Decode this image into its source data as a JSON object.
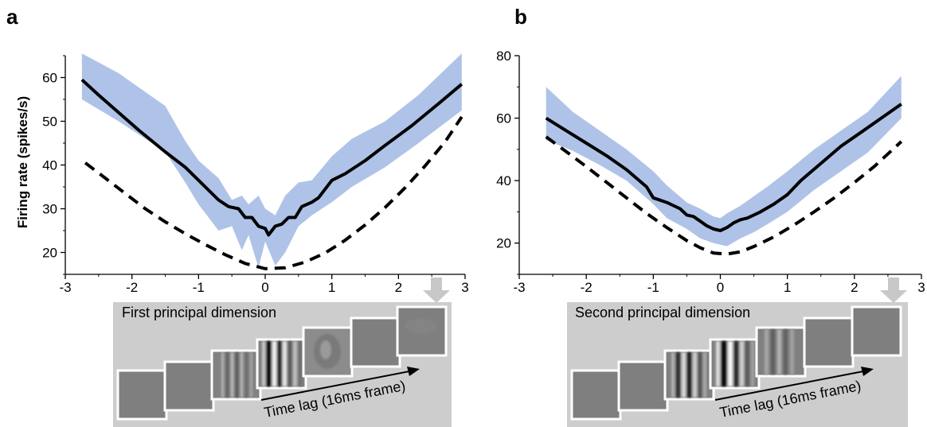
{
  "panels": [
    {
      "letter": "a",
      "inset_title": "First principal dimension",
      "time_lag_label": "Time lag (16ms frame)"
    },
    {
      "letter": "b",
      "inset_title": "Second principal dimension",
      "time_lag_label": "Time lag (16ms frame)"
    }
  ],
  "colors": {
    "band": "#afc3e8",
    "solid": "#000000",
    "dashed": "#000000",
    "inset_bg": "#cdcdcd",
    "frame_gray": "#7f7f7f",
    "arrow_gray": "#c8c8c8"
  },
  "chart_data": [
    {
      "type": "line",
      "panel": "a",
      "title": "",
      "xlabel": "",
      "ylabel": "Firing rate (spikes/s)",
      "xlim": [
        -3,
        3
      ],
      "ylim": [
        15,
        65
      ],
      "xticks": [
        -3,
        -2,
        -1,
        0,
        1,
        2,
        3
      ],
      "yticks": [
        20,
        30,
        40,
        50,
        60
      ],
      "grid": false,
      "series": [
        {
          "style": "solid",
          "x": [
            -2.75,
            -2.5,
            -2.2,
            -1.9,
            -1.5,
            -1.2,
            -0.9,
            -0.7,
            -0.55,
            -0.4,
            -0.3,
            -0.2,
            -0.1,
            0.0,
            0.05,
            0.15,
            0.25,
            0.35,
            0.45,
            0.55,
            0.7,
            0.8,
            1.0,
            1.2,
            1.5,
            1.8,
            2.2,
            2.6,
            2.95
          ],
          "y": [
            59.5,
            56,
            52,
            48,
            43,
            39.5,
            35,
            32,
            30.5,
            30,
            28,
            28,
            26,
            25.5,
            24,
            26,
            26.5,
            28,
            28,
            30.5,
            31.5,
            32.5,
            36.5,
            38,
            41,
            44.5,
            49,
            54,
            58.5
          ]
        },
        {
          "style": "dashed",
          "x": [
            -2.7,
            -2.4,
            -2.1,
            -1.8,
            -1.5,
            -1.2,
            -0.9,
            -0.6,
            -0.3,
            0.0,
            0.3,
            0.6,
            0.9,
            1.2,
            1.5,
            1.8,
            2.1,
            2.4,
            2.7,
            2.95
          ],
          "y": [
            40.5,
            37,
            33.5,
            30,
            27,
            24.3,
            21.8,
            19.5,
            17.5,
            16.3,
            16.5,
            17.8,
            19.9,
            22.8,
            26.3,
            30.3,
            34.8,
            39.8,
            45.3,
            51
          ]
        },
        {
          "style": "band",
          "x": [
            -2.75,
            -2.2,
            -1.5,
            -1.2,
            -1.0,
            -0.7,
            -0.5,
            -0.35,
            -0.25,
            -0.1,
            0.0,
            0.15,
            0.3,
            0.5,
            0.7,
            1.0,
            1.3,
            1.8,
            2.3,
            2.95
          ],
          "upper": [
            65.5,
            61,
            53.5,
            45.5,
            41,
            37,
            32,
            33,
            31,
            33,
            30,
            28.5,
            33,
            36,
            36.5,
            42,
            46,
            50,
            56,
            65.5
          ],
          "lower": [
            55,
            50,
            43,
            36,
            31,
            25,
            26,
            20.5,
            24,
            16.5,
            22.5,
            17,
            20,
            26,
            28.5,
            31.5,
            35,
            39.5,
            45,
            52.5
          ]
        }
      ]
    },
    {
      "type": "line",
      "panel": "b",
      "title": "",
      "xlabel": "",
      "ylabel": "",
      "xlim": [
        -3,
        3
      ],
      "ylim": [
        10,
        80
      ],
      "xticks": [
        -3,
        -2,
        -1,
        0,
        1,
        2,
        3
      ],
      "yticks": [
        20,
        40,
        60,
        80
      ],
      "grid": false,
      "series": [
        {
          "style": "solid",
          "x": [
            -2.6,
            -2.3,
            -2.0,
            -1.7,
            -1.4,
            -1.1,
            -1.0,
            -0.8,
            -0.6,
            -0.5,
            -0.4,
            -0.3,
            -0.2,
            -0.1,
            0.0,
            0.1,
            0.2,
            0.3,
            0.4,
            0.5,
            0.6,
            0.8,
            1.0,
            1.2,
            1.5,
            1.8,
            2.1,
            2.4,
            2.7
          ],
          "y": [
            60,
            56,
            52,
            48,
            43.5,
            38,
            34.5,
            33,
            31,
            29,
            28.5,
            27,
            25.5,
            24.5,
            24,
            25,
            26.5,
            27.5,
            28,
            29,
            30,
            32.5,
            35.5,
            40,
            45.5,
            51,
            55.5,
            60,
            64.5
          ]
        },
        {
          "style": "dashed",
          "x": [
            -2.6,
            -2.3,
            -2.0,
            -1.7,
            -1.4,
            -1.1,
            -0.8,
            -0.5,
            -0.3,
            -0.1,
            0.1,
            0.3,
            0.5,
            0.8,
            1.1,
            1.4,
            1.7,
            2.0,
            2.3,
            2.7
          ],
          "y": [
            54,
            49.3,
            44.5,
            39.5,
            34.5,
            29.5,
            25,
            20.8,
            18.5,
            16.8,
            16.5,
            17.2,
            18.9,
            22,
            25.8,
            30,
            34.5,
            39.4,
            44.6,
            52.5
          ]
        },
        {
          "style": "band",
          "x": [
            -2.6,
            -2.2,
            -1.8,
            -1.4,
            -1.0,
            -0.8,
            -0.5,
            -0.3,
            -0.1,
            0.0,
            0.1,
            0.3,
            0.5,
            0.7,
            1.0,
            1.4,
            1.8,
            2.2,
            2.7
          ],
          "upper": [
            70,
            62,
            56,
            50,
            43,
            38.5,
            33,
            31,
            28.5,
            28,
            29.5,
            32,
            35,
            38,
            43,
            50,
            56,
            62,
            73.5
          ],
          "lower": [
            53,
            49.5,
            45,
            40,
            32.5,
            28,
            24.5,
            21.5,
            20,
            19.5,
            19,
            21.5,
            23.5,
            26,
            30,
            37,
            43,
            49,
            60
          ]
        }
      ]
    }
  ]
}
